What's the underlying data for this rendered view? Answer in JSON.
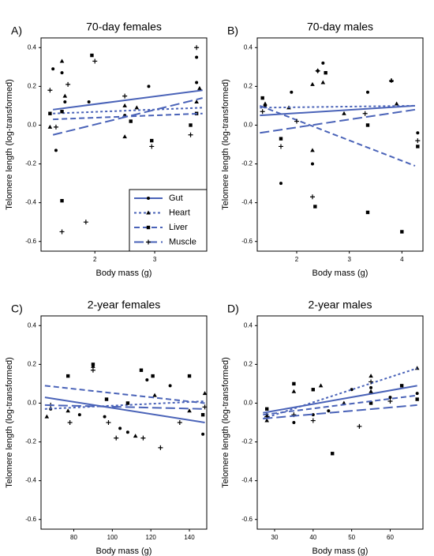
{
  "chart_data": [
    {
      "type": "scatter",
      "panel": "A)",
      "title": "70-day females",
      "x_label": "Body mass (g)",
      "y_label": "Telomere length (log-transformed)",
      "xlim": [
        1.1,
        3.87
      ],
      "ylim": [
        -0.65,
        0.45
      ],
      "xticks": [
        2,
        3
      ],
      "yticks": [
        -0.6,
        -0.4,
        -0.2,
        {
          "value": 0,
          "label": "0.0"
        },
        0.2,
        0.4
      ],
      "legend": "lower right",
      "series": [
        {
          "name": "Gut",
          "color": "#000000",
          "line_color": "#4a63b8",
          "marker": "circle",
          "line_style": "solid",
          "x": [
            1.3,
            1.35,
            1.45,
            1.5,
            1.9,
            2.5,
            2.9,
            3.7,
            3.7
          ],
          "y": [
            0.29,
            -0.13,
            0.27,
            0.12,
            0.12,
            0.05,
            0.2,
            0.35,
            0.22
          ],
          "fit_x": [
            1.3,
            3.8
          ],
          "fit_y": [
            0.08,
            0.18
          ]
        },
        {
          "name": "Heart",
          "color": "#000000",
          "line_color": "#4a63b8",
          "marker": "triangle",
          "line_style": "dotted",
          "x": [
            1.25,
            1.45,
            1.5,
            2.5,
            2.5,
            2.7,
            3.7,
            3.75
          ],
          "y": [
            -0.01,
            0.33,
            0.15,
            -0.06,
            0.1,
            0.09,
            0.12,
            0.19
          ],
          "fit_x": [
            1.3,
            3.8
          ],
          "fit_y": [
            0.06,
            0.09
          ]
        },
        {
          "name": "Liver",
          "color": "#000000",
          "line_color": "#4a63b8",
          "marker": "square",
          "line_style": "dashed",
          "x": [
            1.25,
            1.45,
            1.45,
            1.95,
            2.6,
            2.95,
            3.6,
            3.7
          ],
          "y": [
            0.06,
            0.07,
            -0.39,
            0.36,
            0.02,
            -0.08,
            0,
            0.06
          ],
          "fit_x": [
            1.3,
            3.8
          ],
          "fit_y": [
            0.03,
            0.06
          ]
        },
        {
          "name": "Muscle",
          "color": "#000000",
          "line_color": "#4a63b8",
          "marker": "plus",
          "line_style": "longdash",
          "x": [
            1.25,
            1.35,
            1.45,
            1.55,
            1.85,
            2,
            2.5,
            2.95,
            3.6,
            3.7
          ],
          "y": [
            0.18,
            -0.01,
            -0.55,
            0.21,
            -0.5,
            0.33,
            0.15,
            -0.11,
            -0.05,
            0.4
          ],
          "fit_x": [
            1.3,
            3.8
          ],
          "fit_y": [
            -0.05,
            0.14
          ]
        }
      ]
    },
    {
      "type": "scatter",
      "panel": "B)",
      "title": "70-day males",
      "x_label": "Body mass (g)",
      "y_label": "Telomere length (log-transformed)",
      "xlim": [
        1.25,
        4.4
      ],
      "ylim": [
        -0.65,
        0.45
      ],
      "xticks": [
        2,
        3,
        4
      ],
      "yticks": [
        -0.6,
        -0.4,
        -0.2,
        {
          "value": 0,
          "label": "0.0"
        },
        0.2,
        0.4
      ],
      "series": [
        {
          "name": "Gut",
          "color": "#000000",
          "line_color": "#4a63b8",
          "marker": "circle",
          "line_style": "solid",
          "x": [
            1.7,
            1.9,
            2.3,
            2.5,
            3.35,
            4.3,
            2.4,
            1.4
          ],
          "y": [
            -0.3,
            0.17,
            -0.2,
            0.32,
            0.17,
            -0.04,
            0.28,
            0.1
          ],
          "fit_x": [
            1.3,
            4.25
          ],
          "fit_y": [
            0.05,
            0.1
          ]
        },
        {
          "name": "Heart",
          "color": "#000000",
          "line_color": "#4a63b8",
          "marker": "triangle",
          "line_style": "dotted",
          "x": [
            1.4,
            1.85,
            2.3,
            2.3,
            2.5,
            2.9,
            3.8,
            3.9
          ],
          "y": [
            0.11,
            0.09,
            -0.13,
            0.21,
            0.22,
            0.06,
            0.23,
            0.11
          ],
          "fit_x": [
            1.3,
            4.25
          ],
          "fit_y": [
            0.09,
            0.1
          ]
        },
        {
          "name": "Liver",
          "color": "#000000",
          "line_color": "#4a63b8",
          "marker": "square",
          "line_style": "dashed",
          "x": [
            1.35,
            1.7,
            2.35,
            2.55,
            3.35,
            3.35,
            4,
            4.3
          ],
          "y": [
            0.14,
            -0.07,
            -0.42,
            0.27,
            -0.45,
            0,
            -0.55,
            -0.11
          ],
          "fit_x": [
            1.3,
            4.25
          ],
          "fit_y": [
            0.1,
            -0.21
          ]
        },
        {
          "name": "Muscle",
          "color": "#000000",
          "line_color": "#4a63b8",
          "marker": "plus",
          "line_style": "longdash",
          "x": [
            1.35,
            1.7,
            2,
            2.3,
            2.4,
            3.3,
            3.8,
            4.3
          ],
          "y": [
            0.07,
            -0.11,
            0.02,
            -0.37,
            0.28,
            0.06,
            0.23,
            -0.08
          ],
          "fit_x": [
            1.3,
            4.25
          ],
          "fit_y": [
            -0.04,
            0.08
          ]
        }
      ]
    },
    {
      "type": "scatter",
      "panel": "C)",
      "title": "2-year females",
      "x_label": "Body mass (g)",
      "y_label": "Telomere length (log-transformed)",
      "xlim": [
        63,
        149
      ],
      "ylim": [
        -0.65,
        0.45
      ],
      "xticks": [
        80,
        100,
        120,
        140
      ],
      "yticks": [
        -0.6,
        -0.4,
        -0.2,
        {
          "value": 0,
          "label": "0.0"
        },
        0.2,
        0.4
      ],
      "series": [
        {
          "name": "Gut",
          "color": "#000000",
          "line_color": "#4a63b8",
          "marker": "circle",
          "line_style": "solid",
          "x": [
            68,
            83,
            96,
            104,
            108,
            118,
            130,
            147
          ],
          "y": [
            -0.03,
            -0.06,
            -0.07,
            -0.13,
            -0.15,
            0.12,
            0.09,
            -0.16
          ],
          "fit_x": [
            65,
            148
          ],
          "fit_y": [
            0.03,
            -0.1
          ]
        },
        {
          "name": "Heart",
          "color": "#000000",
          "line_color": "#4a63b8",
          "marker": "triangle",
          "line_style": "dotted",
          "x": [
            66,
            77,
            90,
            112,
            122,
            140,
            148
          ],
          "y": [
            -0.07,
            -0.04,
            0.19,
            -0.17,
            0.04,
            -0.04,
            0.05
          ],
          "fit_x": [
            65,
            148
          ],
          "fit_y": [
            -0.03,
            0.01
          ]
        },
        {
          "name": "Liver",
          "color": "#000000",
          "line_color": "#4a63b8",
          "marker": "square",
          "line_style": "dashed",
          "x": [
            77,
            90,
            97,
            108,
            115,
            121,
            140,
            147
          ],
          "y": [
            0.14,
            0.2,
            0.02,
            0,
            0.17,
            0.14,
            0.14,
            -0.06
          ],
          "fit_x": [
            65,
            148
          ],
          "fit_y": [
            0.09,
            0
          ]
        },
        {
          "name": "Muscle",
          "color": "#000000",
          "line_color": "#4a63b8",
          "marker": "plus",
          "line_style": "longdash",
          "x": [
            68,
            78,
            90,
            98,
            102,
            116,
            125,
            135,
            148
          ],
          "y": [
            -0.01,
            -0.1,
            0.17,
            -0.1,
            -0.18,
            -0.18,
            -0.23,
            -0.1,
            -0.02
          ],
          "fit_x": [
            65,
            148
          ],
          "fit_y": [
            -0.01,
            -0.03
          ]
        }
      ]
    },
    {
      "type": "scatter",
      "panel": "D)",
      "title": "2-year males",
      "x_label": "Body mass (g)",
      "y_label": "Telomere length (log-transformed)",
      "xlim": [
        25.5,
        68.5
      ],
      "ylim": [
        -0.65,
        0.45
      ],
      "xticks": [
        30,
        40,
        50,
        60
      ],
      "yticks": [
        -0.6,
        -0.4,
        -0.2,
        {
          "value": 0,
          "label": "0.0"
        },
        0.2,
        0.4
      ],
      "series": [
        {
          "name": "Gut",
          "color": "#000000",
          "line_color": "#4a63b8",
          "marker": "circle",
          "line_style": "solid",
          "x": [
            28,
            35,
            40,
            44,
            50,
            55,
            60,
            67
          ],
          "y": [
            -0.06,
            -0.1,
            -0.06,
            -0.04,
            0.07,
            0.08,
            0.03,
            0.05
          ],
          "fit_x": [
            27,
            67
          ],
          "fit_y": [
            -0.05,
            0.09
          ]
        },
        {
          "name": "Heart",
          "color": "#000000",
          "line_color": "#4a63b8",
          "marker": "triangle",
          "line_style": "dotted",
          "x": [
            28,
            35,
            42,
            48,
            55,
            55,
            67
          ],
          "y": [
            -0.09,
            0.06,
            0.09,
            0,
            0.14,
            0.06,
            0.18
          ],
          "fit_x": [
            27,
            67
          ],
          "fit_y": [
            -0.08,
            0.18
          ]
        },
        {
          "name": "Liver",
          "color": "#000000",
          "line_color": "#4a63b8",
          "marker": "square",
          "line_style": "dashed",
          "x": [
            28,
            35,
            40,
            45,
            55,
            63,
            67
          ],
          "y": [
            -0.03,
            0.1,
            0.07,
            -0.26,
            0,
            0.09,
            0.02
          ],
          "fit_x": [
            27,
            67
          ],
          "fit_y": [
            -0.06,
            0.04
          ]
        },
        {
          "name": "Muscle",
          "color": "#000000",
          "line_color": "#4a63b8",
          "marker": "plus",
          "line_style": "longdash",
          "x": [
            28,
            35,
            40,
            52,
            55,
            60
          ],
          "y": [
            -0.07,
            -0.06,
            -0.09,
            -0.12,
            0.11,
            0.01
          ],
          "fit_x": [
            27,
            67
          ],
          "fit_y": [
            -0.08,
            -0.01
          ]
        }
      ]
    }
  ]
}
